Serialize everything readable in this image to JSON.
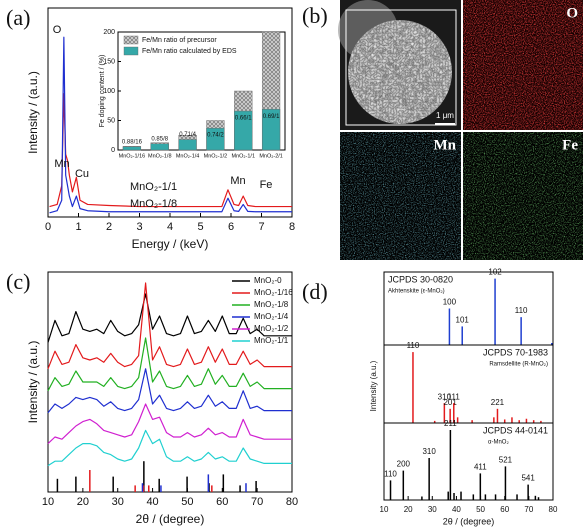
{
  "chart_data": [
    {
      "type": "line",
      "panel_label": "(a)",
      "xlabel": "Energy / (keV)",
      "ylabel": "Intensity / (a.u.)",
      "xlim": [
        0,
        8
      ],
      "xticks": [
        0,
        1,
        2,
        3,
        4,
        5,
        6,
        7,
        8
      ],
      "ylim": [
        0,
        100
      ],
      "x": [
        0.05,
        0.3,
        0.45,
        0.52,
        0.58,
        0.64,
        0.7,
        0.8,
        0.93,
        1.05,
        1.3,
        2,
        3,
        4,
        5,
        5.7,
        5.9,
        6.1,
        6.25,
        6.4,
        6.55,
        6.8,
        7.5,
        8
      ],
      "series": [
        {
          "name": "MnO₂-1/1",
          "color": "#e31a1c",
          "values": [
            5,
            6,
            15,
            59,
            30,
            27,
            20,
            12,
            19,
            8,
            6,
            5.5,
            5,
            5,
            5,
            5,
            13,
            6,
            5.5,
            10,
            5.5,
            5,
            5,
            5
          ]
        },
        {
          "name": "MnO₂-1/8",
          "color": "#1f2fd0",
          "values": [
            2,
            3,
            8,
            86,
            20,
            15,
            10,
            5,
            10,
            4,
            3,
            2.5,
            2.5,
            2.5,
            2.5,
            2.5,
            9,
            3,
            2.7,
            6,
            2.7,
            2.5,
            2.5,
            2.5
          ]
        }
      ],
      "annotations": [
        "O",
        "Mn",
        "Cu",
        "Mn",
        "Fe"
      ]
    },
    {
      "type": "bar",
      "ylabel": "Fe doping content / (%)",
      "categories": [
        "MnO₂-1/16",
        "MnO₂-1/8",
        "MnO₂-1/4",
        "MnO₂-1/2",
        "MnO₂-1/1",
        "MnO₂-2/1"
      ],
      "ylim": [
        0,
        200
      ],
      "yticks": [
        0,
        50,
        100,
        150,
        200
      ],
      "series": [
        {
          "name": "Fe/Mn ratio of precursor",
          "color": "#c8c8c8",
          "hatch": true,
          "values": [
            6.25,
            12.5,
            25,
            50,
            100,
            200
          ]
        },
        {
          "name": "Fe/Mn ratio calculated by EDS",
          "color": "#35a8a8",
          "values": [
            5.5,
            10.625,
            17.75,
            37,
            66,
            69
          ],
          "value_labels": [
            "0.88/16",
            "0.85/8",
            "0.71/4",
            "0.74/2",
            "0.66/1",
            "0.69/1"
          ]
        }
      ]
    },
    {
      "type": "line",
      "panel_label": "(c)",
      "xlabel": "2θ / (degree)",
      "ylabel": "Intensity / (a.u.)",
      "xlim": [
        10,
        80
      ],
      "xticks": [
        10,
        20,
        30,
        40,
        50,
        60,
        70,
        80
      ],
      "ylim": [
        0,
        100
      ],
      "legend": "upper right",
      "x": [
        10,
        12,
        14,
        16,
        18,
        20,
        22,
        24,
        26,
        28,
        30,
        32,
        34,
        36,
        38,
        40,
        42,
        44,
        46,
        48,
        50,
        52,
        54,
        56,
        58,
        60,
        62,
        64,
        66,
        68,
        70,
        72,
        74,
        76,
        78,
        80
      ],
      "series": [
        {
          "name": "MnO₂-0",
          "color": "#000000",
          "values": [
            68,
            78,
            71,
            72,
            82,
            74,
            73,
            74,
            72,
            78,
            73,
            71,
            72,
            76,
            90,
            74,
            80,
            72,
            71,
            72,
            80,
            72,
            73,
            78,
            73,
            80,
            72,
            72,
            79,
            72,
            74,
            71,
            71,
            71,
            71,
            71
          ]
        },
        {
          "name": "MnO₂-1/16",
          "color": "#e31a1c",
          "values": [
            56,
            64,
            58,
            59,
            67,
            61,
            60,
            61,
            59,
            63,
            59,
            57,
            58,
            62,
            95,
            60,
            66,
            58,
            57,
            58,
            65,
            58,
            59,
            66,
            59,
            65,
            58,
            58,
            64,
            58,
            60,
            57,
            57,
            57,
            57,
            57
          ]
        },
        {
          "name": "MnO₂-1/8",
          "color": "#22b022",
          "values": [
            46,
            52,
            48,
            49,
            55,
            50,
            50,
            50,
            48,
            52,
            48,
            47,
            48,
            52,
            70,
            50,
            55,
            48,
            47,
            48,
            53,
            48,
            49,
            56,
            49,
            53,
            48,
            48,
            54,
            48,
            50,
            47,
            47,
            47,
            47,
            47
          ]
        },
        {
          "name": "MnO₂-1/4",
          "color": "#1f2fd0",
          "values": [
            36,
            40,
            38,
            40,
            43,
            42,
            43,
            42,
            39,
            41,
            38,
            37,
            38,
            42,
            56,
            40,
            44,
            38,
            37,
            38,
            41,
            38,
            39,
            44,
            39,
            41,
            38,
            38,
            46,
            38,
            39,
            37,
            37,
            37,
            37,
            37
          ]
        },
        {
          "name": "MnO₂-1/2",
          "color": "#d020d0",
          "values": [
            22,
            25,
            24,
            27,
            30,
            32,
            33,
            31,
            28,
            27,
            26,
            25,
            26,
            32,
            40,
            33,
            34,
            27,
            25,
            25,
            27,
            25,
            26,
            29,
            26,
            27,
            25,
            25,
            33,
            26,
            25,
            24,
            24,
            24,
            24,
            24
          ]
        },
        {
          "name": "MnO₂-1/1",
          "color": "#20d0d0",
          "values": [
            12,
            14,
            14,
            17,
            20,
            22,
            22,
            21,
            18,
            17,
            15,
            14,
            15,
            20,
            28,
            22,
            24,
            16,
            14,
            14,
            16,
            14,
            15,
            18,
            15,
            16,
            14,
            14,
            20,
            15,
            14,
            13,
            13,
            13,
            13,
            13
          ]
        }
      ],
      "sticks": [
        {
          "color": "#000000",
          "x": [
            12.7,
            18.0,
            28.7,
            37.5,
            41.9,
            49.9,
            56.2,
            60.3,
            65.1,
            69.7
          ],
          "values": [
            6,
            7,
            7,
            14,
            6,
            7,
            4,
            8,
            3,
            5
          ]
        },
        {
          "color": "#e31a1c",
          "x": [
            22.0,
            35.0,
            37.4,
            38.9,
            57.0
          ],
          "values": [
            10,
            3,
            3,
            3,
            3
          ]
        },
        {
          "color": "#1f2fd0",
          "x": [
            37.1,
            42.4,
            56.0,
            66.8
          ],
          "values": [
            4,
            3,
            8,
            4
          ]
        }
      ]
    },
    {
      "type": "stick",
      "panel_label": "(d)",
      "title": "JCPDS 30-0820",
      "subtitle": "Akhtenskite (ε-MnO₂)",
      "color": "#1f3fd0",
      "xlim": [
        10,
        80
      ],
      "ylim": [
        0,
        110
      ],
      "x": [
        37.1,
        42.4,
        56.0,
        66.8,
        79.5
      ],
      "values": [
        55,
        28,
        100,
        42,
        3
      ],
      "peak_labels": [
        "100",
        "101",
        "102",
        "110",
        null
      ]
    },
    {
      "type": "stick",
      "title": "JCPDS 70-1983",
      "subtitle": "Ramsdellite (R-MnO₂)",
      "color": "#e31a1c",
      "xlim": [
        10,
        80
      ],
      "ylim": [
        0,
        110
      ],
      "x": [
        22.0,
        31.0,
        35.0,
        37.4,
        38.9,
        40.5,
        46.5,
        55.5,
        57.0,
        60.0,
        63.0,
        66.0,
        69.0,
        72.0,
        75.0
      ],
      "values": [
        100,
        3,
        28,
        20,
        28,
        8,
        4,
        8,
        20,
        5,
        8,
        4,
        6,
        4,
        3
      ],
      "peak_labels": [
        "110",
        null,
        "310",
        "201",
        "111",
        null,
        null,
        null,
        "221",
        null,
        null,
        null,
        null,
        null,
        null
      ]
    },
    {
      "type": "stick",
      "title": "JCPDS 44-0141",
      "subtitle": "α-MnO₂",
      "color": "#000000",
      "xlim": [
        10,
        80
      ],
      "ylim": [
        0,
        110
      ],
      "xticks": [
        10,
        20,
        30,
        40,
        50,
        60,
        70,
        80
      ],
      "xlabel": "2θ / (degree)",
      "ylabel": "Intensity (a.u.)",
      "x": [
        12.7,
        18.0,
        25.7,
        28.7,
        36.6,
        37.5,
        39.0,
        41.9,
        47.0,
        49.9,
        52.0,
        56.2,
        60.3,
        65.1,
        69.7,
        72.7,
        74.0
      ],
      "values": [
        28,
        42,
        5,
        60,
        12,
        100,
        10,
        12,
        8,
        38,
        8,
        8,
        48,
        8,
        22,
        6,
        4
      ],
      "peak_labels": [
        "110",
        "200",
        null,
        "310",
        null,
        "211",
        null,
        null,
        null,
        "411",
        null,
        null,
        "521",
        null,
        "541",
        null,
        null
      ]
    }
  ],
  "micrographs": {
    "panel_label": "(b)",
    "maps": [
      "O",
      "Mn",
      "Fe"
    ],
    "scale_bar": "1 μm"
  }
}
